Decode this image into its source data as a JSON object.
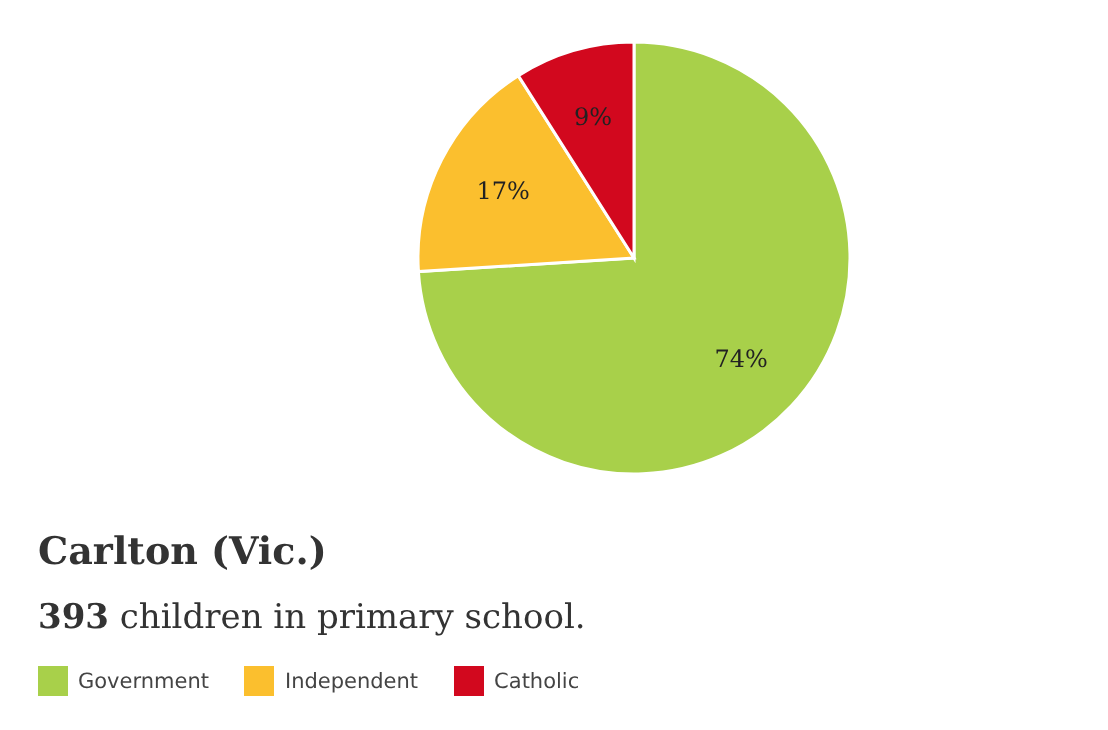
{
  "chart_data": {
    "type": "pie",
    "title": "Carlton (Vic.)",
    "subtitle": "393 children in primary school.",
    "categories": [
      "Government",
      "Independent",
      "Catholic"
    ],
    "values": [
      74,
      17,
      9
    ],
    "colors": [
      "#a8d04a",
      "#fbbf2e",
      "#d2081e"
    ],
    "value_labels": [
      "74%",
      "17%",
      "9%"
    ],
    "legend": "bottom"
  }
}
